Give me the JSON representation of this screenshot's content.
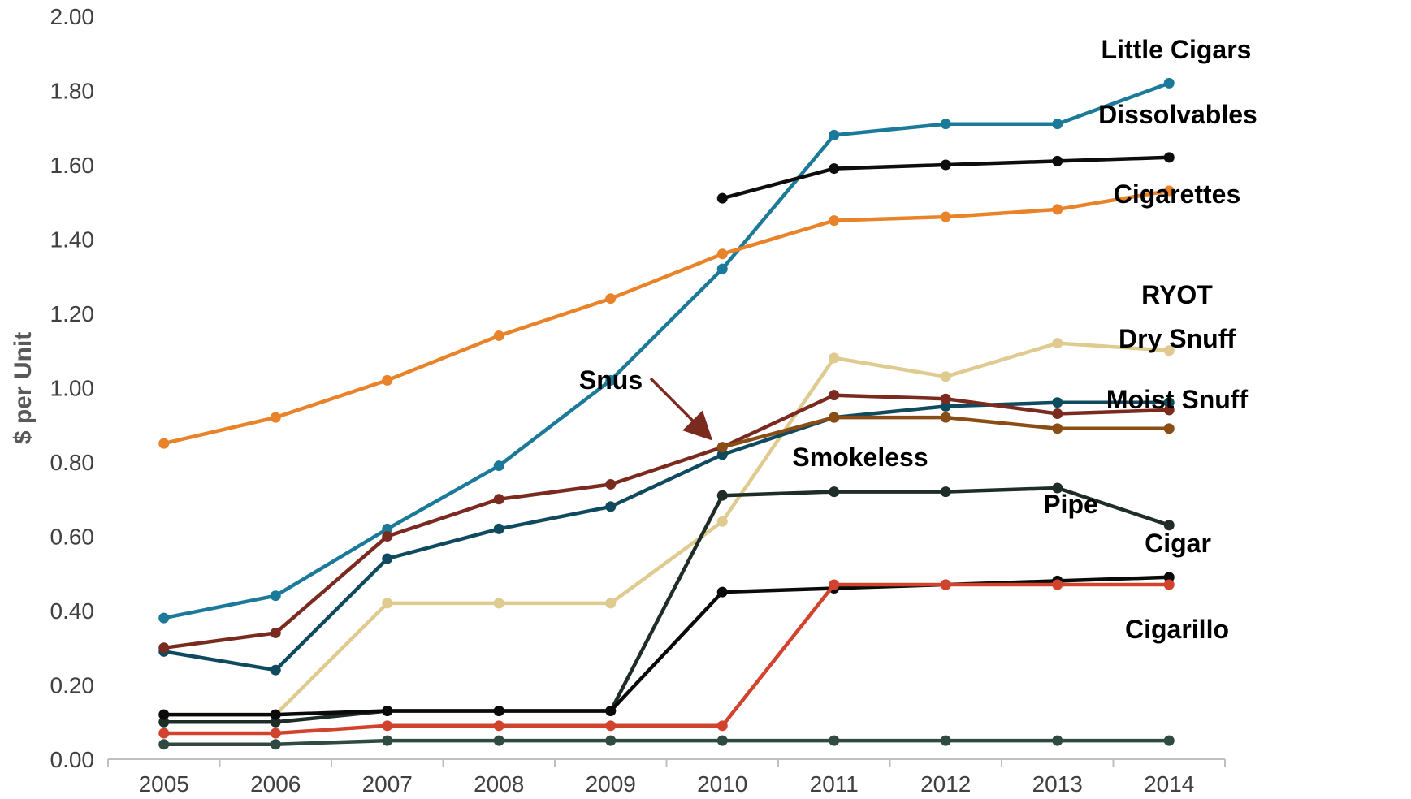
{
  "chart_data": {
    "type": "line",
    "title": "",
    "xlabel": "",
    "ylabel": "$ per Unit",
    "ylim": [
      0,
      2.0
    ],
    "y_ticks": [
      "0.00",
      "0.20",
      "0.40",
      "0.60",
      "0.80",
      "1.00",
      "1.20",
      "1.40",
      "1.60",
      "1.80",
      "2.00"
    ],
    "categories": [
      "2005",
      "2006",
      "2007",
      "2008",
      "2009",
      "2010",
      "2011",
      "2012",
      "2013",
      "2014"
    ],
    "grid": false,
    "legend": "none (direct labels at line ends)",
    "series": [
      {
        "name": "Little Cigars",
        "color": "#1b7a99",
        "values": [
          0.38,
          0.44,
          0.62,
          0.79,
          1.02,
          1.32,
          1.68,
          1.71,
          1.71,
          1.82
        ]
      },
      {
        "name": "Dissolvables",
        "color": "#0d0d0d",
        "values": [
          null,
          null,
          null,
          null,
          null,
          1.51,
          1.59,
          1.6,
          1.61,
          1.62
        ]
      },
      {
        "name": "Cigarettes",
        "color": "#e8832a",
        "values": [
          0.85,
          0.92,
          1.02,
          1.14,
          1.24,
          1.36,
          1.45,
          1.46,
          1.48,
          1.53
        ]
      },
      {
        "name": "RYOT",
        "color": "#dfca8f",
        "values": [
          0.12,
          0.12,
          0.42,
          0.42,
          0.42,
          0.64,
          1.08,
          1.03,
          1.12,
          1.1
        ]
      },
      {
        "name": "Dry Snuff",
        "color": "#0f4a5e",
        "values": [
          0.29,
          0.24,
          0.54,
          0.62,
          0.68,
          0.82,
          0.92,
          0.95,
          0.96,
          0.96
        ]
      },
      {
        "name": "Snus",
        "color": "#7b2a20",
        "values": [
          0.3,
          0.34,
          0.6,
          0.7,
          0.74,
          0.84,
          0.98,
          0.97,
          0.93,
          0.94
        ]
      },
      {
        "name": "Moist Snuff",
        "color": "#8a4d16",
        "values": [
          null,
          null,
          null,
          null,
          null,
          0.84,
          0.92,
          0.92,
          0.89,
          0.89
        ]
      },
      {
        "name": "Smokeless",
        "color": "#1f2d27",
        "values": [
          0.1,
          0.1,
          0.13,
          0.13,
          0.13,
          0.71,
          0.72,
          0.72,
          0.73,
          0.63
        ]
      },
      {
        "name": "Pipe",
        "color": "#0a0a0a",
        "values": [
          0.12,
          0.12,
          0.13,
          0.13,
          0.13,
          0.45,
          0.46,
          0.47,
          0.48,
          0.49
        ]
      },
      {
        "name": "Cigar",
        "color": "#d2432e",
        "values": [
          0.07,
          0.07,
          0.09,
          0.09,
          0.09,
          0.09,
          0.47,
          0.47,
          0.47,
          0.47
        ]
      },
      {
        "name": "Cigarillo",
        "color": "#2f4a40",
        "values": [
          0.04,
          0.04,
          0.05,
          0.05,
          0.05,
          0.05,
          0.05,
          0.05,
          0.05,
          0.05
        ]
      }
    ],
    "annotations": [
      {
        "text": "Snus",
        "points_to": {
          "x": "2010",
          "y": 0.84
        },
        "arrow_color": "#7b2a20"
      }
    ]
  }
}
